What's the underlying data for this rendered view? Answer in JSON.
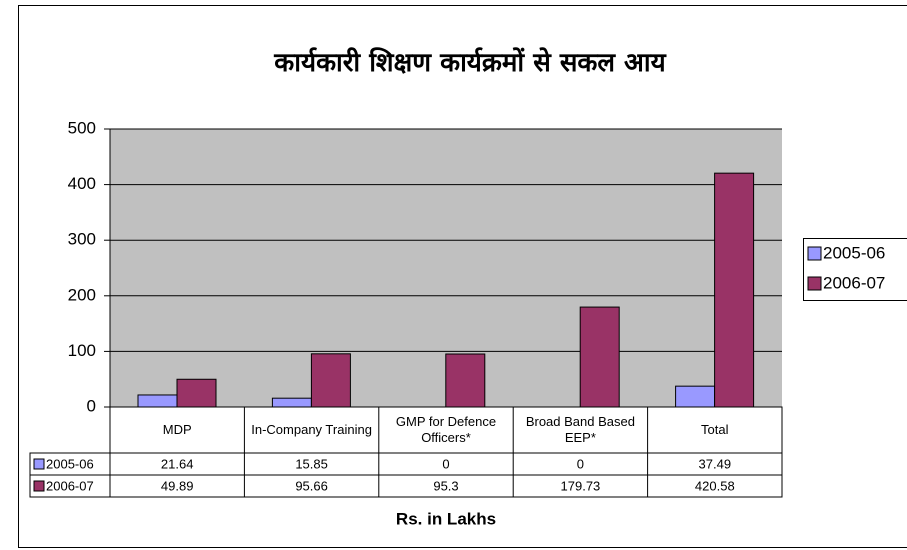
{
  "chart_data": {
    "type": "bar",
    "title": "कार्यकारी शिक्षण कार्यक्रमों से सकल आय",
    "x_label": "Rs. in Lakhs",
    "categories": [
      "MDP",
      "In-Company Training",
      "GMP for Defence Officers*",
      "Broad Band Based EEP*",
      "Total"
    ],
    "series": [
      {
        "name": "2005-06",
        "color": "#9999ff",
        "values": [
          21.64,
          15.85,
          0,
          0,
          37.49
        ]
      },
      {
        "name": "2006-07",
        "color": "#993366",
        "values": [
          49.89,
          95.66,
          95.3,
          179.73,
          420.58
        ]
      }
    ],
    "ylim": [
      0,
      500
    ],
    "yticks": [
      0,
      100,
      200,
      300,
      400,
      500
    ],
    "grid": true,
    "legend": "right"
  }
}
